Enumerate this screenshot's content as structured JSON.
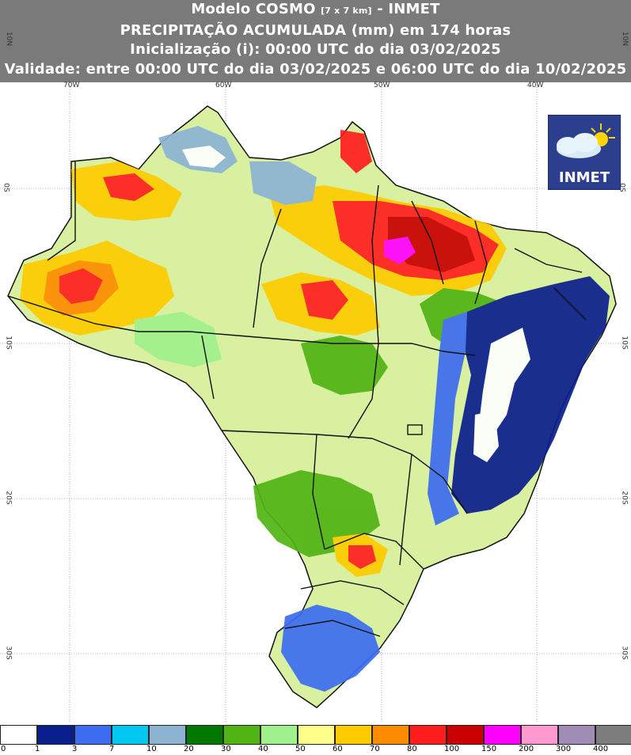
{
  "header": {
    "line1_prefix": "Modelo COSMO ",
    "line1_res": "[7 x 7 km]",
    "line1_suffix": " - INMET",
    "line2": "PRECIPITAÇÃO ACUMULADA (mm) em 174 horas",
    "line3": "Inicialização (i): 00:00 UTC do dia 03/02/2025",
    "line4": "Validade: entre 00:00 UTC do dia 03/02/2025 e 06:00 UTC do dia 10/02/2025"
  },
  "logo": {
    "text": "INMET"
  },
  "grid": {
    "top_labels": [
      "70W",
      "60W",
      "50W",
      "40W"
    ],
    "side_labels": [
      "10N",
      "0S",
      "10S",
      "20S",
      "30S"
    ]
  },
  "legend": {
    "colors": [
      "#ffffff",
      "#0a1e8c",
      "#3c6cf0",
      "#00c8f0",
      "#8cb4d2",
      "#007800",
      "#50b414",
      "#a0f08c",
      "#ffff8c",
      "#ffcc00",
      "#ff8c00",
      "#ff1e1e",
      "#c80000",
      "#ff00ff",
      "#ff99d0",
      "#a08cb4",
      "#7d7d7d"
    ],
    "labels": [
      "0",
      "1",
      "3",
      "7",
      "10",
      "20",
      "30",
      "40",
      "50",
      "60",
      "70",
      "80",
      "100",
      "150",
      "200",
      "300",
      "400"
    ]
  }
}
